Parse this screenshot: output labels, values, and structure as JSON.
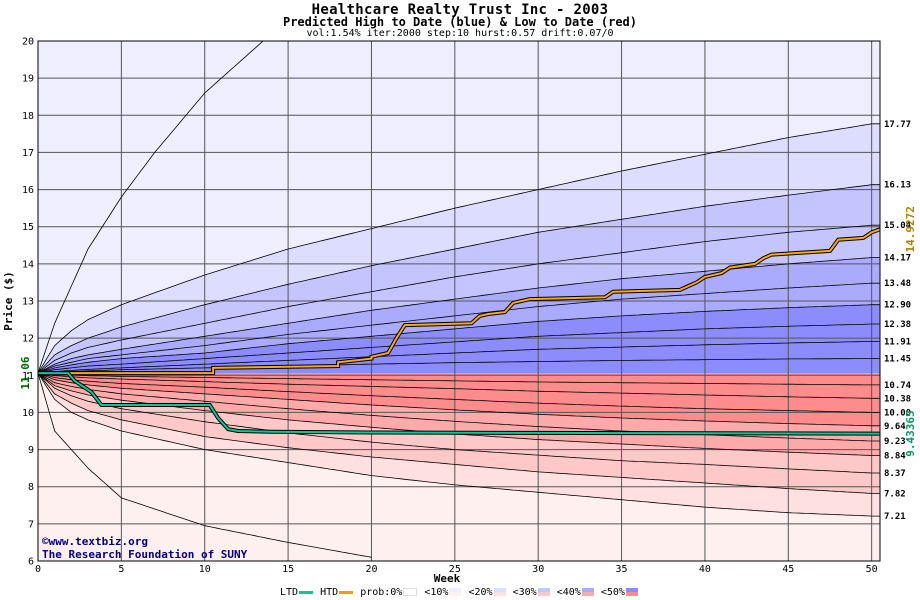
{
  "header": {
    "title": "Healthcare Realty Trust Inc - 2003",
    "subtitle": "Predicted High to Date (blue) &  Low to Date (red)",
    "params": "vol:1.54% iter:2000 step:10 hurst:0.57 drift:0.07/0"
  },
  "credit": {
    "line1": "©www.textbiz.org",
    "line2": "The Research Foundation of SUNY"
  },
  "legend": {
    "ltd": "LTD",
    "htd": "HTD",
    "prob": "prob:0%",
    "items": [
      "<10%",
      "<20%",
      "<30%",
      "<40%",
      "<50%"
    ],
    "colors": {
      "ltd": "#00cc99",
      "htd": "#ff9900"
    }
  },
  "chart_data": {
    "type": "area",
    "title": "Healthcare Realty Trust Inc - 2003",
    "xlabel": "Week",
    "ylabel": "Price ($)",
    "xlim": [
      0,
      50.5
    ],
    "ylim": [
      6,
      20
    ],
    "x_ticks": [
      0,
      5,
      10,
      15,
      20,
      25,
      30,
      35,
      40,
      45,
      50
    ],
    "y_ticks": [
      6,
      7,
      8,
      9,
      10,
      11,
      12,
      13,
      14,
      15,
      16,
      17,
      18,
      19,
      20
    ],
    "grid": true,
    "start_price": 11.06,
    "start_label": "11.06",
    "htd_end_label": "14.9272",
    "ltd_end_label": "9.43365",
    "colors": {
      "high_bands": [
        "#eeeeff",
        "#ddddff",
        "#c4c4ff",
        "#aaaaff",
        "#8c8cff"
      ],
      "low_bands": [
        "#fff0f0",
        "#ffe0e0",
        "#ffc8c8",
        "#ffaaaa",
        "#ff8c8c"
      ],
      "htd": "#ffaa00",
      "ltd": "#00cc99"
    },
    "high_quantiles": [
      {
        "name": "max",
        "x": [
          0,
          1,
          2,
          3,
          5,
          7,
          10,
          12,
          13.5
        ],
        "y": [
          11.06,
          12.4,
          13.4,
          14.4,
          15.8,
          17.0,
          18.6,
          19.4,
          20
        ]
      },
      {
        "name": "q1",
        "end_label": "17.77",
        "x": [
          0,
          1,
          2,
          3,
          5,
          10,
          15,
          20,
          25,
          30,
          35,
          40,
          45,
          50
        ],
        "y": [
          11.06,
          11.8,
          12.2,
          12.5,
          12.9,
          13.7,
          14.4,
          14.95,
          15.5,
          16.0,
          16.5,
          16.95,
          17.4,
          17.77
        ]
      },
      {
        "name": "q2",
        "end_label": "16.13",
        "x": [
          0,
          1,
          2,
          3,
          5,
          10,
          15,
          20,
          25,
          30,
          35,
          40,
          45,
          50
        ],
        "y": [
          11.06,
          11.55,
          11.8,
          12.0,
          12.3,
          12.9,
          13.45,
          13.95,
          14.4,
          14.85,
          15.2,
          15.55,
          15.85,
          16.13
        ]
      },
      {
        "name": "q3",
        "end_label": "15.04",
        "x": [
          0,
          1,
          2,
          3,
          5,
          10,
          15,
          20,
          25,
          30,
          35,
          40,
          45,
          50
        ],
        "y": [
          11.06,
          11.4,
          11.6,
          11.75,
          11.95,
          12.4,
          12.85,
          13.25,
          13.65,
          14.0,
          14.3,
          14.6,
          14.85,
          15.04
        ]
      },
      {
        "name": "q4",
        "end_label": "14.17",
        "x": [
          0,
          1,
          2,
          3,
          5,
          10,
          15,
          20,
          25,
          30,
          35,
          40,
          45,
          50
        ],
        "y": [
          11.06,
          11.3,
          11.45,
          11.55,
          11.7,
          12.05,
          12.4,
          12.75,
          13.05,
          13.35,
          13.6,
          13.8,
          14.0,
          14.17
        ]
      },
      {
        "name": "q5",
        "end_label": "13.48",
        "x": [
          0,
          1,
          2,
          3,
          5,
          10,
          15,
          20,
          25,
          30,
          35,
          40,
          45,
          50
        ],
        "y": [
          11.06,
          11.25,
          11.35,
          11.45,
          11.55,
          11.8,
          12.1,
          12.35,
          12.6,
          12.85,
          13.05,
          13.2,
          13.35,
          13.48
        ]
      },
      {
        "name": "q6",
        "end_label": "12.90",
        "x": [
          0,
          1,
          2,
          3,
          5,
          10,
          15,
          20,
          25,
          30,
          35,
          40,
          45,
          50
        ],
        "y": [
          11.06,
          11.2,
          11.28,
          11.35,
          11.45,
          11.6,
          11.85,
          12.05,
          12.25,
          12.45,
          12.6,
          12.72,
          12.82,
          12.9
        ]
      },
      {
        "name": "q7",
        "end_label": "12.38",
        "x": [
          0,
          1,
          2,
          3,
          5,
          10,
          15,
          20,
          25,
          30,
          35,
          40,
          45,
          50
        ],
        "y": [
          11.06,
          11.15,
          11.2,
          11.25,
          11.3,
          11.45,
          11.6,
          11.75,
          11.9,
          12.05,
          12.15,
          12.25,
          12.32,
          12.38
        ]
      },
      {
        "name": "q8",
        "end_label": "11.91",
        "x": [
          0,
          1,
          2,
          3,
          5,
          10,
          15,
          20,
          25,
          30,
          35,
          40,
          45,
          50
        ],
        "y": [
          11.06,
          11.1,
          11.13,
          11.16,
          11.2,
          11.3,
          11.4,
          11.5,
          11.6,
          11.7,
          11.76,
          11.82,
          11.87,
          11.91
        ]
      },
      {
        "name": "q9",
        "end_label": "11.45",
        "x": [
          0,
          1,
          2,
          3,
          5,
          10,
          15,
          20,
          25,
          30,
          35,
          40,
          45,
          50
        ],
        "y": [
          11.06,
          11.08,
          11.1,
          11.12,
          11.15,
          11.2,
          11.25,
          11.3,
          11.34,
          11.37,
          11.4,
          11.42,
          11.44,
          11.45
        ]
      }
    ],
    "low_quantiles": [
      {
        "name": "min",
        "x": [
          0,
          1,
          2,
          3,
          5,
          10,
          15,
          20,
          20.2
        ],
        "y": [
          11.06,
          9.5,
          9.0,
          8.5,
          7.7,
          6.95,
          6.5,
          6.1,
          6.0
        ]
      },
      {
        "name": "q1",
        "end_label": "7.21",
        "x": [
          0,
          1,
          2,
          3,
          5,
          10,
          15,
          20,
          25,
          30,
          35,
          40,
          45,
          50
        ],
        "y": [
          11.06,
          10.35,
          10.0,
          9.8,
          9.5,
          9.0,
          8.65,
          8.3,
          8.05,
          7.85,
          7.65,
          7.45,
          7.3,
          7.21
        ]
      },
      {
        "name": "q2",
        "end_label": "7.82",
        "x": [
          0,
          1,
          2,
          3,
          5,
          10,
          15,
          20,
          25,
          30,
          35,
          40,
          45,
          50
        ],
        "y": [
          11.06,
          10.5,
          10.25,
          10.05,
          9.8,
          9.35,
          9.05,
          8.8,
          8.6,
          8.4,
          8.25,
          8.1,
          7.95,
          7.82
        ]
      },
      {
        "name": "q3",
        "end_label": "8.37",
        "x": [
          0,
          1,
          2,
          3,
          5,
          10,
          15,
          20,
          25,
          30,
          35,
          40,
          45,
          50
        ],
        "y": [
          11.06,
          10.65,
          10.45,
          10.3,
          10.1,
          9.75,
          9.45,
          9.2,
          9.0,
          8.85,
          8.7,
          8.6,
          8.48,
          8.37
        ]
      },
      {
        "name": "q4",
        "end_label": "8.84",
        "x": [
          0,
          1,
          2,
          3,
          5,
          10,
          15,
          20,
          25,
          30,
          35,
          40,
          45,
          50
        ],
        "y": [
          11.06,
          10.72,
          10.58,
          10.47,
          10.33,
          10.05,
          9.8,
          9.6,
          9.42,
          9.27,
          9.15,
          9.03,
          8.93,
          8.84
        ]
      },
      {
        "name": "q5",
        "end_label": "9.23",
        "x": [
          0,
          1,
          2,
          3,
          5,
          10,
          15,
          20,
          25,
          30,
          35,
          40,
          45,
          50
        ],
        "y": [
          11.06,
          10.8,
          10.7,
          10.62,
          10.5,
          10.3,
          10.1,
          9.92,
          9.76,
          9.62,
          9.5,
          9.4,
          9.31,
          9.23
        ]
      },
      {
        "name": "q6",
        "end_label": "9.64",
        "x": [
          0,
          1,
          2,
          3,
          5,
          10,
          15,
          20,
          25,
          30,
          35,
          40,
          45,
          50
        ],
        "y": [
          11.06,
          10.88,
          10.8,
          10.74,
          10.65,
          10.5,
          10.35,
          10.2,
          10.07,
          9.95,
          9.85,
          9.77,
          9.7,
          9.64
        ]
      },
      {
        "name": "q7",
        "end_label": "10.00",
        "x": [
          0,
          1,
          2,
          3,
          5,
          10,
          15,
          20,
          25,
          30,
          35,
          40,
          45,
          50
        ],
        "y": [
          11.06,
          10.94,
          10.88,
          10.84,
          10.78,
          10.68,
          10.56,
          10.45,
          10.35,
          10.25,
          10.17,
          10.1,
          10.05,
          10.0
        ]
      },
      {
        "name": "q8",
        "end_label": "10.38",
        "x": [
          0,
          1,
          2,
          3,
          5,
          10,
          15,
          20,
          25,
          30,
          35,
          40,
          45,
          50
        ],
        "y": [
          11.06,
          10.99,
          10.96,
          10.93,
          10.9,
          10.83,
          10.76,
          10.7,
          10.64,
          10.57,
          10.52,
          10.47,
          10.42,
          10.38
        ]
      },
      {
        "name": "q9",
        "end_label": "10.74",
        "x": [
          0,
          1,
          2,
          3,
          5,
          10,
          15,
          20,
          25,
          30,
          35,
          40,
          45,
          50
        ],
        "y": [
          11.06,
          11.03,
          11.01,
          10.99,
          10.97,
          10.94,
          10.91,
          10.88,
          10.85,
          10.82,
          10.8,
          10.78,
          10.76,
          10.74
        ]
      }
    ],
    "htd": {
      "name": "HTD",
      "x": [
        0,
        10.5,
        10.5,
        18,
        18,
        20,
        20,
        21,
        21.5,
        22,
        26,
        26.5,
        27,
        28,
        28.5,
        29,
        29.5,
        34,
        34.5,
        38.5,
        39,
        39.5,
        40,
        41,
        41.5,
        43,
        43.5,
        44,
        47.5,
        48,
        49.5,
        50,
        50.5
      ],
      "y": [
        11.06,
        11.06,
        11.2,
        11.25,
        11.35,
        11.45,
        11.5,
        11.6,
        12.0,
        12.35,
        12.4,
        12.6,
        12.65,
        12.7,
        12.95,
        13.0,
        13.05,
        13.1,
        13.25,
        13.3,
        13.4,
        13.5,
        13.65,
        13.75,
        13.9,
        14.0,
        14.15,
        14.25,
        14.35,
        14.65,
        14.7,
        14.85,
        14.93
      ]
    },
    "ltd": {
      "name": "LTD",
      "x": [
        0,
        1.8,
        2.2,
        3.2,
        3.8,
        10.3,
        10.8,
        11.4,
        12,
        14,
        20,
        30,
        40,
        50.5
      ],
      "y": [
        11.06,
        11.06,
        10.85,
        10.55,
        10.2,
        10.2,
        9.85,
        9.55,
        9.5,
        9.48,
        9.46,
        9.45,
        9.44,
        9.43
      ]
    }
  }
}
